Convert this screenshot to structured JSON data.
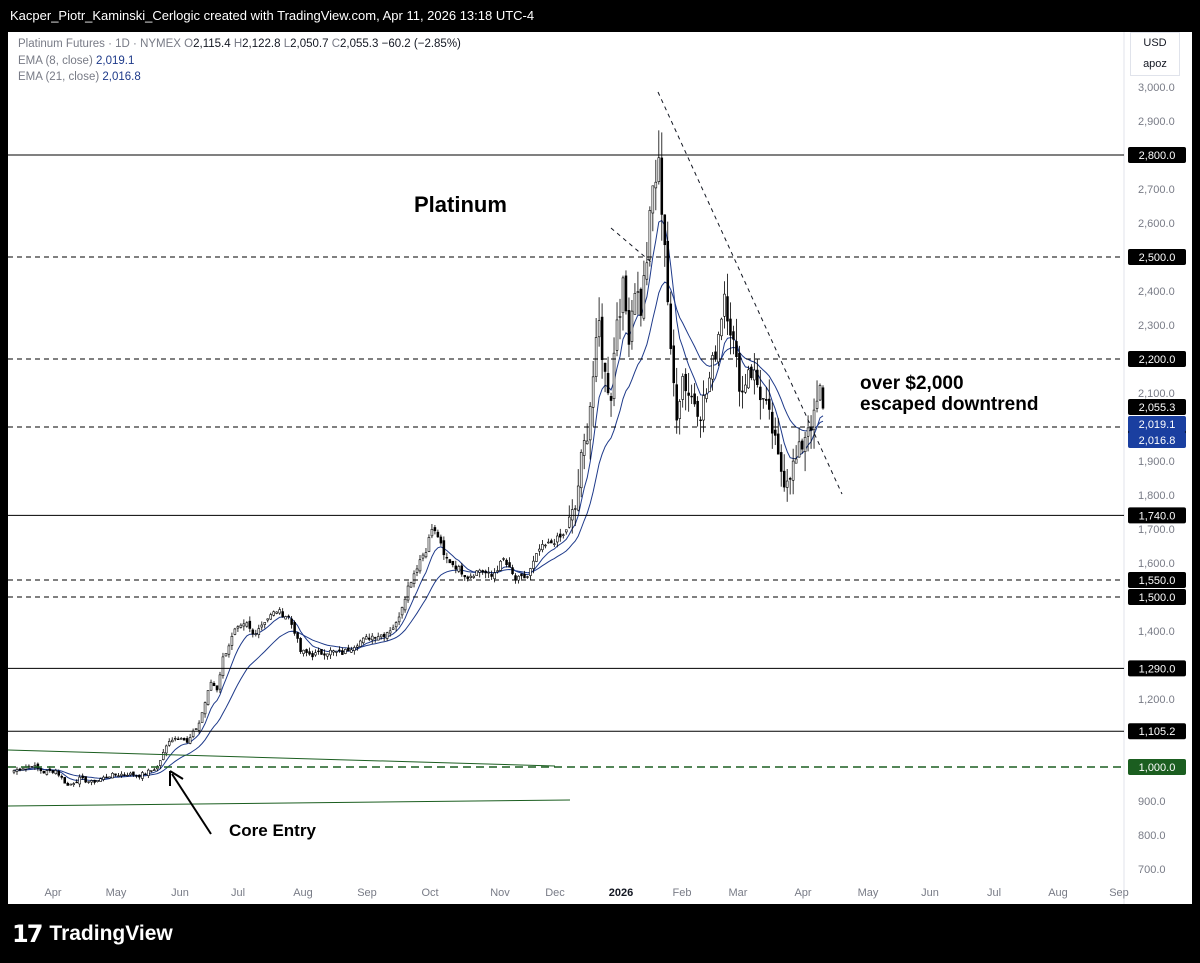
{
  "header": {
    "attribution": "Kacper_Piotr_Kaminski_Cerlogic created with TradingView.com, Apr 11, 2026 13:18 UTC-4"
  },
  "legend": {
    "symbol": "Platinum Futures · 1D · NYMEX",
    "o_label": "O",
    "o": "2,115.4",
    "h_label": "H",
    "h": "2,122.8",
    "l_label": "L",
    "l": "2,050.7",
    "c_label": "C",
    "c": "2,055.3",
    "change": "−60.2 (−2.85%)",
    "ema8_label": "EMA (8, close)",
    "ema8_value": "2,019.1",
    "ema21_label": "EMA (21, close)",
    "ema21_value": "2,016.8"
  },
  "currency": {
    "unit": "USD",
    "user": "apoz"
  },
  "footer": {
    "brand": "TradingView"
  },
  "colors": {
    "candle_up": "#ffffff",
    "candle_down": "#000000",
    "ema": "#1e3a8a",
    "green_level": "#1b5e20",
    "label_bg": "#000000",
    "ema_label_bg": "#1a3fa0"
  },
  "chart_data": {
    "type": "candlestick",
    "title": "Platinum",
    "ylim": [
      650,
      3050
    ],
    "y_ticks": [
      "700.0",
      "800.0",
      "900.0",
      "1,000.0",
      "1,100.0",
      "1,200.0",
      "1,300.0",
      "1,400.0",
      "1,500.0",
      "1,600.0",
      "1,700.0",
      "1,800.0",
      "1,900.0",
      "2,000.0",
      "2,100.0",
      "2,200.0",
      "2,300.0",
      "2,400.0",
      "2,500.0",
      "2,600.0",
      "2,700.0",
      "2,800.0",
      "2,900.0",
      "3,000.0"
    ],
    "x_ticks": [
      "Apr",
      "May",
      "Jun",
      "Jul",
      "Aug",
      "Sep",
      "Oct",
      "Nov",
      "Dec",
      "2026",
      "Feb",
      "Mar",
      "Apr",
      "May",
      "Jun",
      "Jul",
      "Aug",
      "Sep"
    ],
    "horizontal_levels": [
      {
        "value": 2800,
        "label": "2,800.0",
        "style": "solid"
      },
      {
        "value": 2500,
        "label": "2,500.0",
        "style": "dashed"
      },
      {
        "value": 2200,
        "label": "2,200.0",
        "style": "dashed"
      },
      {
        "value": 2000,
        "label": "2,000.0",
        "style": "dashed"
      },
      {
        "value": 1740,
        "label": "1,740.0",
        "style": "solid"
      },
      {
        "value": 1550,
        "label": "1,550.0",
        "style": "dashed"
      },
      {
        "value": 1500,
        "label": "1,500.0",
        "style": "dashed"
      },
      {
        "value": 1290,
        "label": "1,290.0",
        "style": "solid"
      },
      {
        "value": 1105.2,
        "label": "1,105.2",
        "style": "solid"
      },
      {
        "value": 1000,
        "label": "1,000.0",
        "style": "green-dashed"
      }
    ],
    "price_labels": [
      {
        "value": 2055.3,
        "label": "2,055.3",
        "kind": "last"
      },
      {
        "value": 2019.1,
        "label": "2,019.1",
        "kind": "ema"
      },
      {
        "value": 2016.8,
        "label": "2,016.8",
        "kind": "ema"
      }
    ],
    "annotations": [
      {
        "text": "over $2,000"
      },
      {
        "text": "escaped downtrend"
      },
      {
        "text": "Core Entry"
      }
    ],
    "ohlc_anchor_path": [
      [
        0,
        990
      ],
      [
        6,
        1005
      ],
      [
        10,
        985
      ],
      [
        14,
        990
      ],
      [
        18,
        945
      ],
      [
        22,
        965
      ],
      [
        26,
        955
      ],
      [
        32,
        975
      ],
      [
        38,
        980
      ],
      [
        42,
        975
      ],
      [
        46,
        990
      ],
      [
        48,
        1000
      ],
      [
        52,
        1080
      ],
      [
        56,
        1090
      ],
      [
        58,
        1070
      ],
      [
        62,
        1130
      ],
      [
        66,
        1250
      ],
      [
        68,
        1230
      ],
      [
        70,
        1320
      ],
      [
        74,
        1400
      ],
      [
        78,
        1420
      ],
      [
        80,
        1390
      ],
      [
        84,
        1430
      ],
      [
        88,
        1460
      ],
      [
        92,
        1440
      ],
      [
        94,
        1400
      ],
      [
        96,
        1340
      ],
      [
        100,
        1330
      ],
      [
        106,
        1340
      ],
      [
        110,
        1335
      ],
      [
        116,
        1370
      ],
      [
        120,
        1385
      ],
      [
        124,
        1390
      ],
      [
        128,
        1420
      ],
      [
        132,
        1530
      ],
      [
        136,
        1610
      ],
      [
        138,
        1640
      ],
      [
        140,
        1700
      ],
      [
        142,
        1680
      ],
      [
        144,
        1620
      ],
      [
        148,
        1590
      ],
      [
        152,
        1560
      ],
      [
        156,
        1580
      ],
      [
        160,
        1560
      ],
      [
        164,
        1610
      ],
      [
        168,
        1550
      ],
      [
        172,
        1560
      ],
      [
        176,
        1640
      ],
      [
        180,
        1660
      ],
      [
        184,
        1680
      ],
      [
        188,
        1760
      ],
      [
        190,
        1900
      ],
      [
        192,
        1990
      ],
      [
        194,
        2150
      ],
      [
        196,
        2300
      ],
      [
        198,
        2150
      ],
      [
        200,
        2100
      ],
      [
        202,
        2330
      ],
      [
        204,
        2400
      ],
      [
        206,
        2280
      ],
      [
        208,
        2420
      ],
      [
        210,
        2350
      ],
      [
        212,
        2500
      ],
      [
        214,
        2700
      ],
      [
        216,
        2760
      ],
      [
        218,
        2550
      ],
      [
        220,
        2200
      ],
      [
        222,
        2050
      ],
      [
        224,
        2150
      ],
      [
        226,
        2100
      ],
      [
        228,
        2080
      ],
      [
        230,
        2050
      ],
      [
        232,
        2100
      ],
      [
        234,
        2180
      ],
      [
        236,
        2280
      ],
      [
        238,
        2400
      ],
      [
        240,
        2300
      ],
      [
        242,
        2180
      ],
      [
        244,
        2100
      ],
      [
        246,
        2180
      ],
      [
        248,
        2150
      ],
      [
        250,
        2100
      ],
      [
        252,
        2050
      ],
      [
        254,
        1990
      ],
      [
        256,
        1900
      ],
      [
        258,
        1850
      ],
      [
        260,
        1870
      ],
      [
        262,
        1900
      ],
      [
        264,
        1950
      ],
      [
        266,
        2010
      ],
      [
        268,
        2020
      ],
      [
        270,
        2115
      ],
      [
        271,
        2055.3
      ]
    ],
    "ema8_last": 2019.1,
    "ema21_last": 2016.8
  }
}
